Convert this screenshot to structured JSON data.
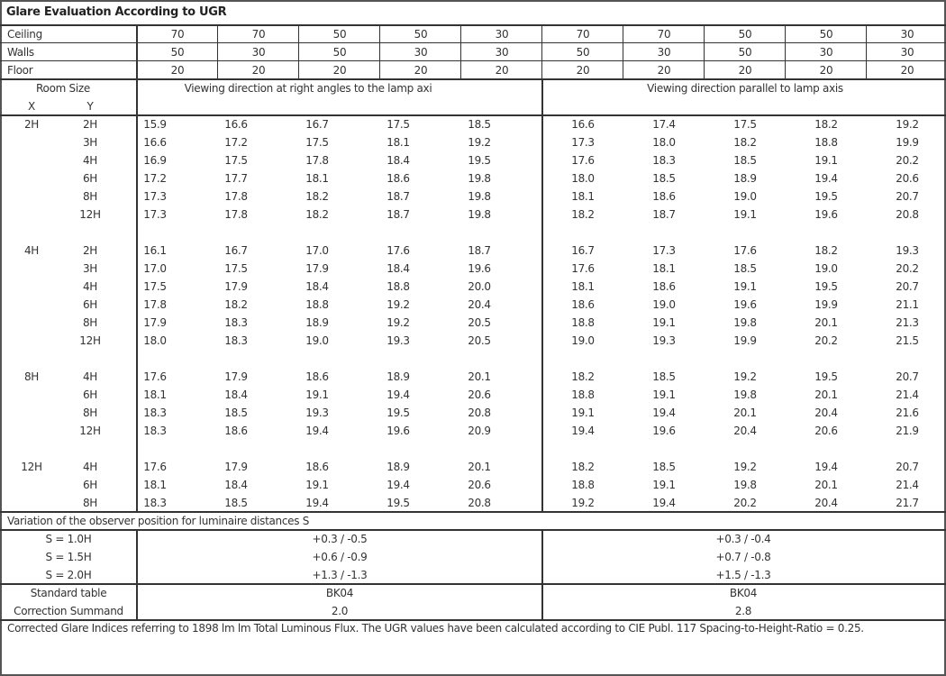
{
  "title": "Glare Evaluation According to UGR",
  "reflectances": {
    "ceiling_label": "Ceiling",
    "walls_label": "Walls",
    "floor_label": "Floor",
    "ceiling": [
      "70",
      "70",
      "50",
      "50",
      "30",
      "70",
      "70",
      "50",
      "50",
      "30"
    ],
    "walls": [
      "50",
      "30",
      "50",
      "30",
      "30",
      "50",
      "30",
      "50",
      "30",
      "30"
    ],
    "floor": [
      "20",
      "20",
      "20",
      "20",
      "20",
      "20",
      "20",
      "20",
      "20",
      "20"
    ]
  },
  "room_size_label": "Room Size",
  "x_label": "X",
  "y_label": "Y",
  "perp_header": "Viewing direction at right angles to the lamp axi",
  "para_header": "Viewing direction parallel to lamp axis",
  "blocks": [
    {
      "x": "2H",
      "rows": [
        {
          "y": "2H",
          "perp": [
            "15.9",
            "16.6",
            "16.7",
            "17.5",
            "18.5"
          ],
          "para": [
            "16.6",
            "17.4",
            "17.5",
            "18.2",
            "19.2"
          ]
        },
        {
          "y": "3H",
          "perp": [
            "16.6",
            "17.2",
            "17.5",
            "18.1",
            "19.2"
          ],
          "para": [
            "17.3",
            "18.0",
            "18.2",
            "18.8",
            "19.9"
          ]
        },
        {
          "y": "4H",
          "perp": [
            "16.9",
            "17.5",
            "17.8",
            "18.4",
            "19.5"
          ],
          "para": [
            "17.6",
            "18.3",
            "18.5",
            "19.1",
            "20.2"
          ]
        },
        {
          "y": "6H",
          "perp": [
            "17.2",
            "17.7",
            "18.1",
            "18.6",
            "19.8"
          ],
          "para": [
            "18.0",
            "18.5",
            "18.9",
            "19.4",
            "20.6"
          ]
        },
        {
          "y": "8H",
          "perp": [
            "17.3",
            "17.8",
            "18.2",
            "18.7",
            "19.8"
          ],
          "para": [
            "18.1",
            "18.6",
            "19.0",
            "19.5",
            "20.7"
          ]
        },
        {
          "y": "12H",
          "perp": [
            "17.3",
            "17.8",
            "18.2",
            "18.7",
            "19.8"
          ],
          "para": [
            "18.2",
            "18.7",
            "19.1",
            "19.6",
            "20.8"
          ]
        }
      ]
    },
    {
      "x": "4H",
      "rows": [
        {
          "y": "2H",
          "perp": [
            "16.1",
            "16.7",
            "17.0",
            "17.6",
            "18.7"
          ],
          "para": [
            "16.7",
            "17.3",
            "17.6",
            "18.2",
            "19.3"
          ]
        },
        {
          "y": "3H",
          "perp": [
            "17.0",
            "17.5",
            "17.9",
            "18.4",
            "19.6"
          ],
          "para": [
            "17.6",
            "18.1",
            "18.5",
            "19.0",
            "20.2"
          ]
        },
        {
          "y": "4H",
          "perp": [
            "17.5",
            "17.9",
            "18.4",
            "18.8",
            "20.0"
          ],
          "para": [
            "18.1",
            "18.6",
            "19.1",
            "19.5",
            "20.7"
          ]
        },
        {
          "y": "6H",
          "perp": [
            "17.8",
            "18.2",
            "18.8",
            "19.2",
            "20.4"
          ],
          "para": [
            "18.6",
            "19.0",
            "19.6",
            "19.9",
            "21.1"
          ]
        },
        {
          "y": "8H",
          "perp": [
            "17.9",
            "18.3",
            "18.9",
            "19.2",
            "20.5"
          ],
          "para": [
            "18.8",
            "19.1",
            "19.8",
            "20.1",
            "21.3"
          ]
        },
        {
          "y": "12H",
          "perp": [
            "18.0",
            "18.3",
            "19.0",
            "19.3",
            "20.5"
          ],
          "para": [
            "19.0",
            "19.3",
            "19.9",
            "20.2",
            "21.5"
          ]
        }
      ]
    },
    {
      "x": "8H",
      "rows": [
        {
          "y": "4H",
          "perp": [
            "17.6",
            "17.9",
            "18.6",
            "18.9",
            "20.1"
          ],
          "para": [
            "18.2",
            "18.5",
            "19.2",
            "19.5",
            "20.7"
          ]
        },
        {
          "y": "6H",
          "perp": [
            "18.1",
            "18.4",
            "19.1",
            "19.4",
            "20.6"
          ],
          "para": [
            "18.8",
            "19.1",
            "19.8",
            "20.1",
            "21.4"
          ]
        },
        {
          "y": "8H",
          "perp": [
            "18.3",
            "18.5",
            "19.3",
            "19.5",
            "20.8"
          ],
          "para": [
            "19.1",
            "19.4",
            "20.1",
            "20.4",
            "21.6"
          ]
        },
        {
          "y": "12H",
          "perp": [
            "18.3",
            "18.6",
            "19.4",
            "19.6",
            "20.9"
          ],
          "para": [
            "19.4",
            "19.6",
            "20.4",
            "20.6",
            "21.9"
          ]
        }
      ]
    },
    {
      "x": "12H",
      "rows": [
        {
          "y": "4H",
          "perp": [
            "17.6",
            "17.9",
            "18.6",
            "18.9",
            "20.1"
          ],
          "para": [
            "18.2",
            "18.5",
            "19.2",
            "19.4",
            "20.7"
          ]
        },
        {
          "y": "6H",
          "perp": [
            "18.1",
            "18.4",
            "19.1",
            "19.4",
            "20.6"
          ],
          "para": [
            "18.8",
            "19.1",
            "19.8",
            "20.1",
            "21.4"
          ]
        },
        {
          "y": "8H",
          "perp": [
            "18.3",
            "18.5",
            "19.4",
            "19.5",
            "20.8"
          ],
          "para": [
            "19.2",
            "19.4",
            "20.2",
            "20.4",
            "21.7"
          ]
        }
      ]
    }
  ],
  "variation": {
    "title": "Variation of the observer position for luminaire distances S",
    "rows": [
      {
        "label": "S = 1.0H",
        "perp": "+0.3 / -0.5",
        "para": "+0.3 / -0.4"
      },
      {
        "label": "S = 1.5H",
        "perp": "+0.6 / -0.9",
        "para": "+0.7 / -0.8"
      },
      {
        "label": "S = 2.0H",
        "perp": "+1.3 / -1.3",
        "para": "+1.5 / -1.3"
      }
    ]
  },
  "standard_table": {
    "label": "Standard table",
    "perp": "BK04",
    "para": "BK04"
  },
  "correction": {
    "label": "Correction Summand",
    "perp": "2.0",
    "para": "2.8"
  },
  "footer": "Corrected Glare Indices referring to 1898 lm lm Total Luminous Flux. The UGR values have been calculated according to CIE Publ. 117    Spacing-to-Height-Ratio = 0.25."
}
